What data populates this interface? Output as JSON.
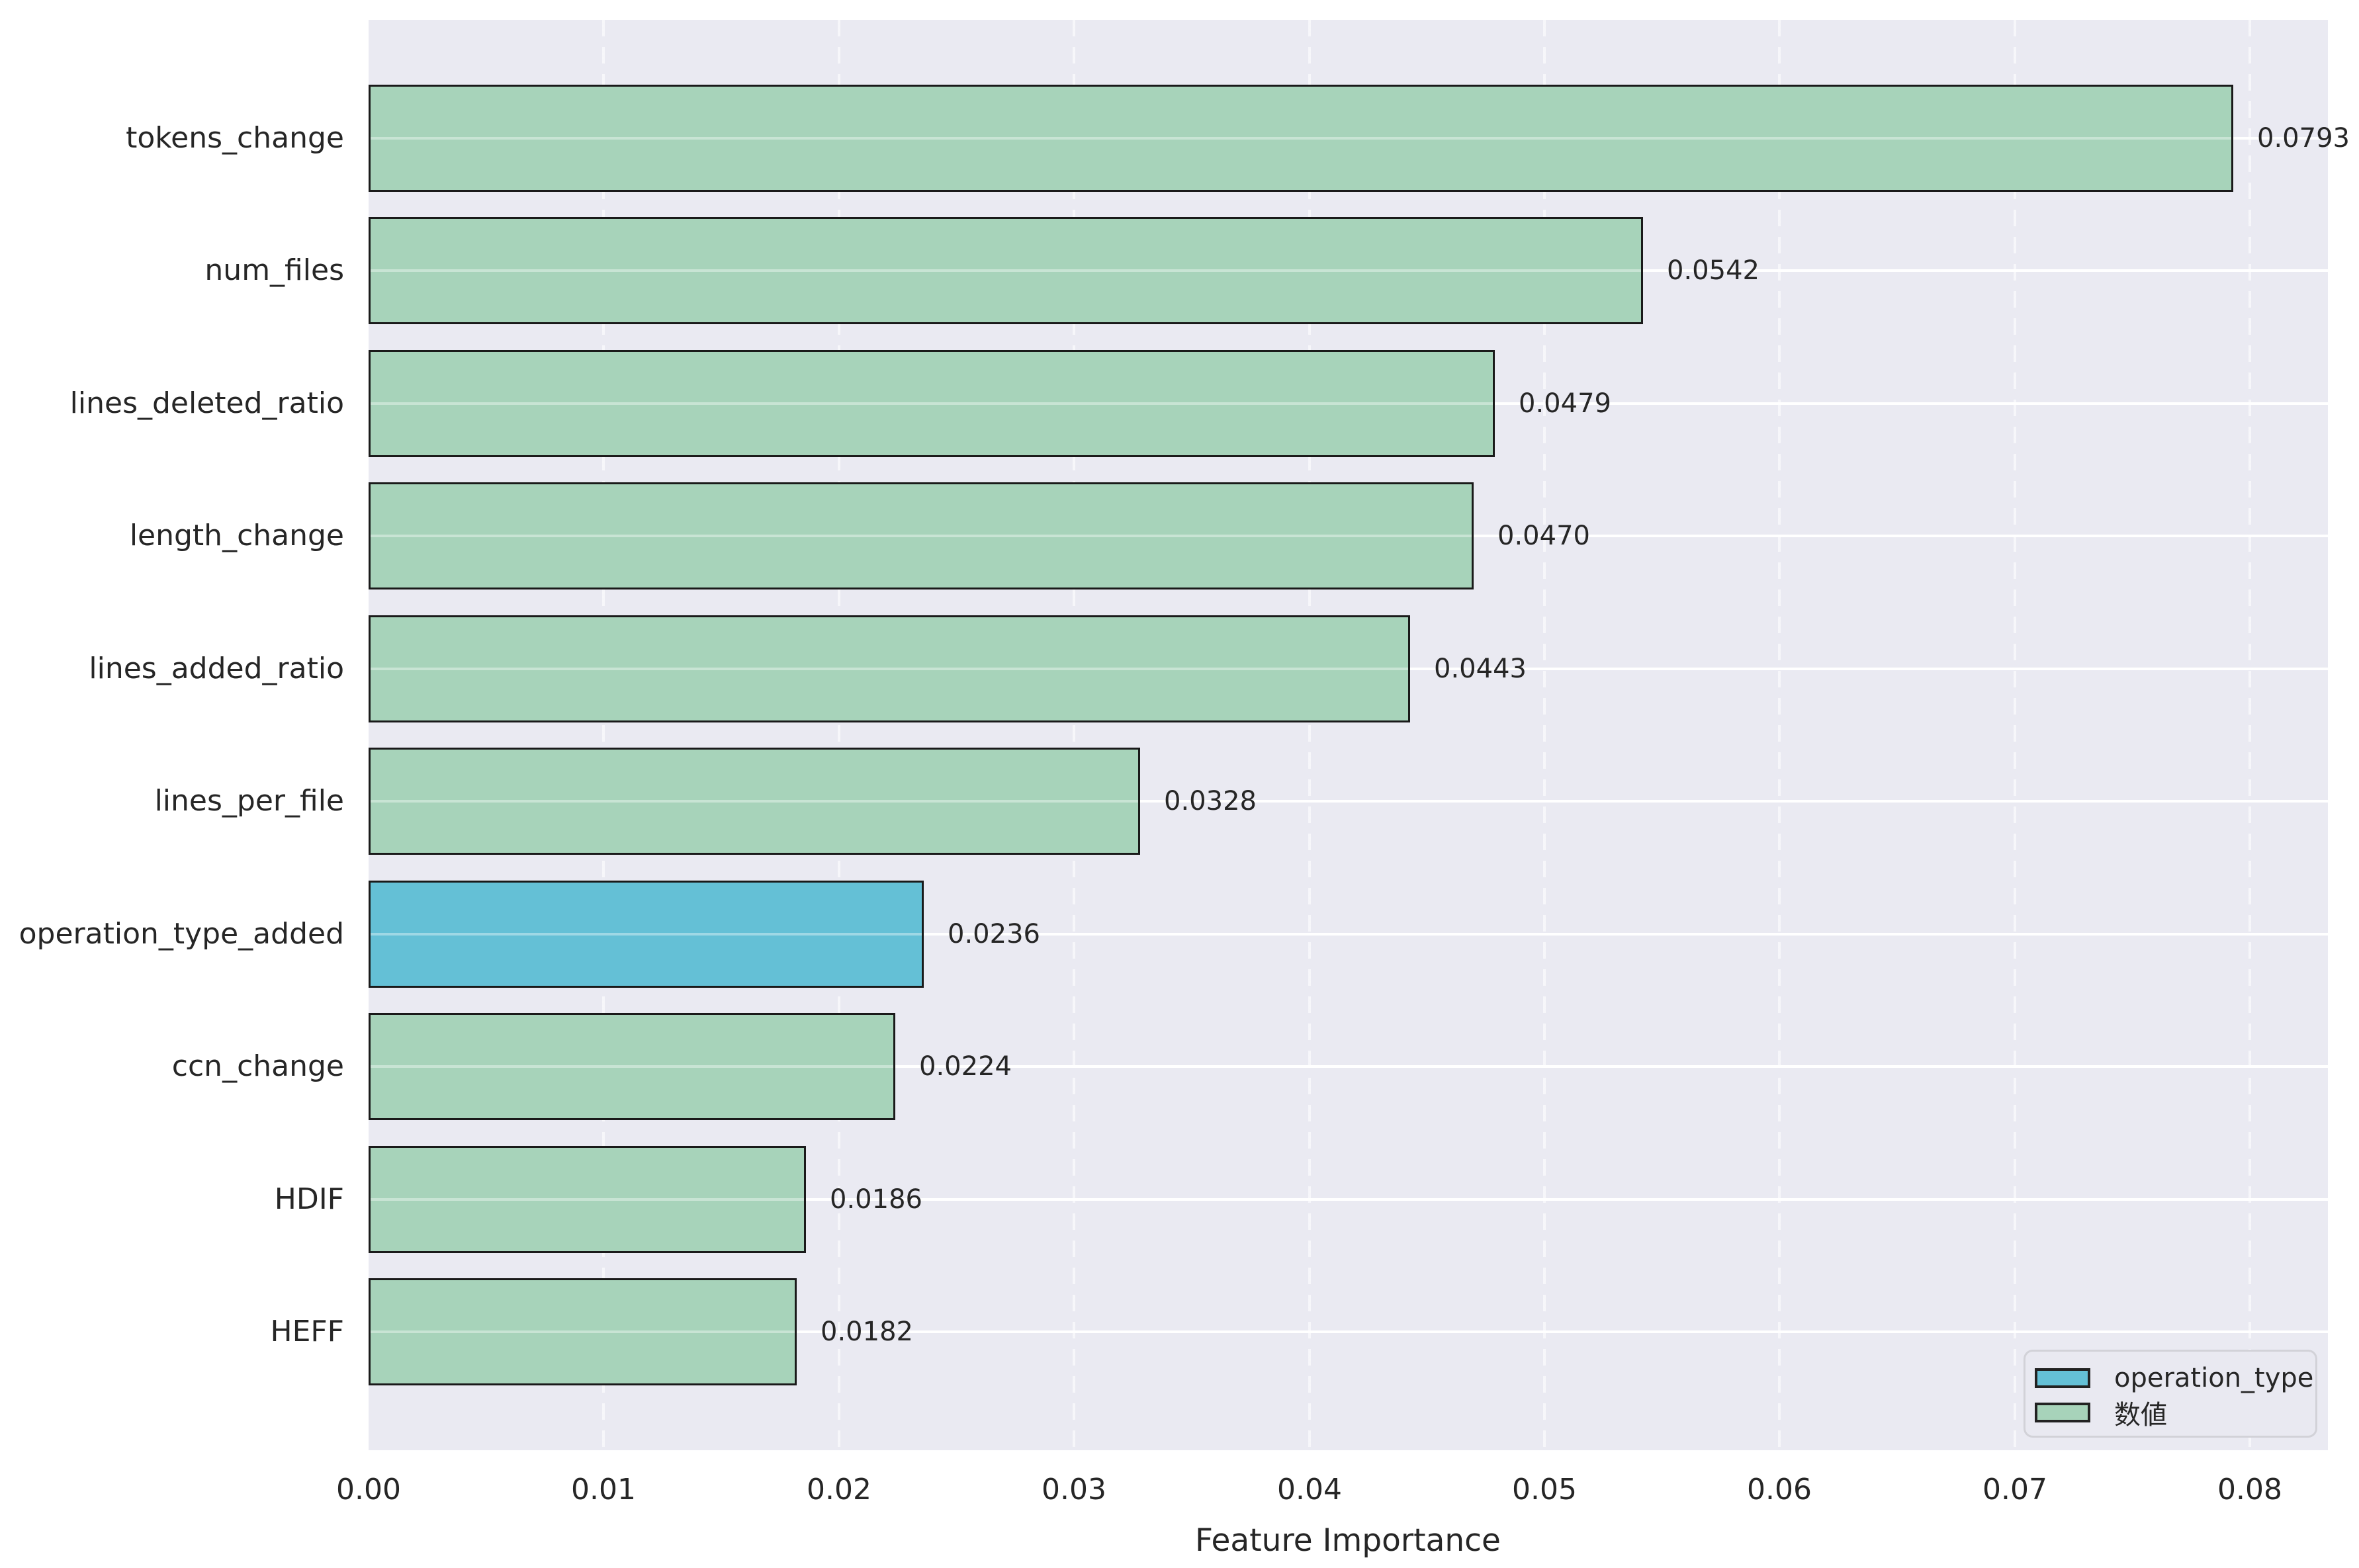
{
  "chart_data": {
    "type": "bar",
    "orientation": "horizontal",
    "title": "",
    "xlabel": "Feature Importance",
    "ylabel": "",
    "xlim": [
      0,
      0.0833
    ],
    "grid": true,
    "legend_position": "lower right",
    "x_ticks": [
      {
        "label": "0.00",
        "value": 0.0
      },
      {
        "label": "0.01",
        "value": 0.01
      },
      {
        "label": "0.02",
        "value": 0.02
      },
      {
        "label": "0.03",
        "value": 0.03
      },
      {
        "label": "0.04",
        "value": 0.04
      },
      {
        "label": "0.05",
        "value": 0.05
      },
      {
        "label": "0.06",
        "value": 0.06
      },
      {
        "label": "0.07",
        "value": 0.07
      },
      {
        "label": "0.08",
        "value": 0.08
      }
    ],
    "categories": [
      "tokens_change",
      "num_files",
      "lines_deleted_ratio",
      "length_change",
      "lines_added_ratio",
      "lines_per_file",
      "operation_type_added",
      "ccn_change",
      "HDIF",
      "HEFF"
    ],
    "values": [
      0.0793,
      0.0542,
      0.0479,
      0.047,
      0.0443,
      0.0328,
      0.0236,
      0.0224,
      0.0186,
      0.0182
    ],
    "value_labels": [
      "0.0793",
      "0.0542",
      "0.0479",
      "0.0470",
      "0.0443",
      "0.0328",
      "0.0236",
      "0.0224",
      "0.0186",
      "0.0182"
    ],
    "bar_groups": [
      "数値",
      "数値",
      "数値",
      "数値",
      "数値",
      "数値",
      "operation_type",
      "数値",
      "数値",
      "数値"
    ],
    "legend_entries": [
      {
        "label": "operation_type",
        "color": "#64c0d6"
      },
      {
        "label": "数値",
        "color": "#a7d3ba"
      }
    ],
    "colors": {
      "numeric_bar": "#a7d3ba",
      "operation_type_bar": "#64c0d6",
      "plot_background": "#eaeaf2",
      "gridline": "#ffffff",
      "bar_edge": "#1a1a1a",
      "text": "#262626"
    }
  }
}
